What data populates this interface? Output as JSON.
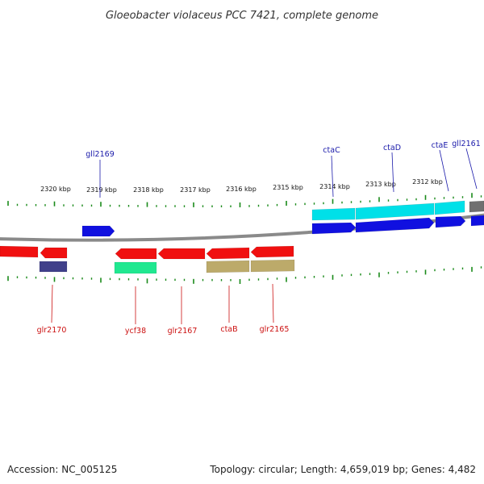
{
  "title": "Gloeobacter violaceus PCC 7421, complete genome",
  "accession": "Accession: NC_005125",
  "summary": "Topology: circular; Length: 4,659,019 bp; Genes: 4,482",
  "colors": {
    "backbone": "#8a8a8a",
    "ticks": "#1a8a1a",
    "label_forward": "#1a1aaa",
    "label_reverse": "#cc1111",
    "gene_blue": "#1010e0",
    "gene_cyan": "#00e0e8",
    "gene_red": "#f01010",
    "gene_green": "#20e890",
    "gene_olive": "#bcaa6a",
    "gene_navy": "#40408a",
    "gene_gray": "#707070"
  },
  "kbp_labels": [
    "2320 kbp",
    "2319 kbp",
    "2318 kbp",
    "2317 kbp",
    "2316 kbp",
    "2315 kbp",
    "2314 kbp",
    "2313 kbp",
    "2312 kbp"
  ],
  "top_labels": [
    "gll2169",
    "ctaC",
    "ctaD",
    "ctaE",
    "gll2161"
  ],
  "bottom_labels": [
    "glr2170",
    "ycf38",
    "glr2167",
    "ctaB",
    "glr2165"
  ]
}
